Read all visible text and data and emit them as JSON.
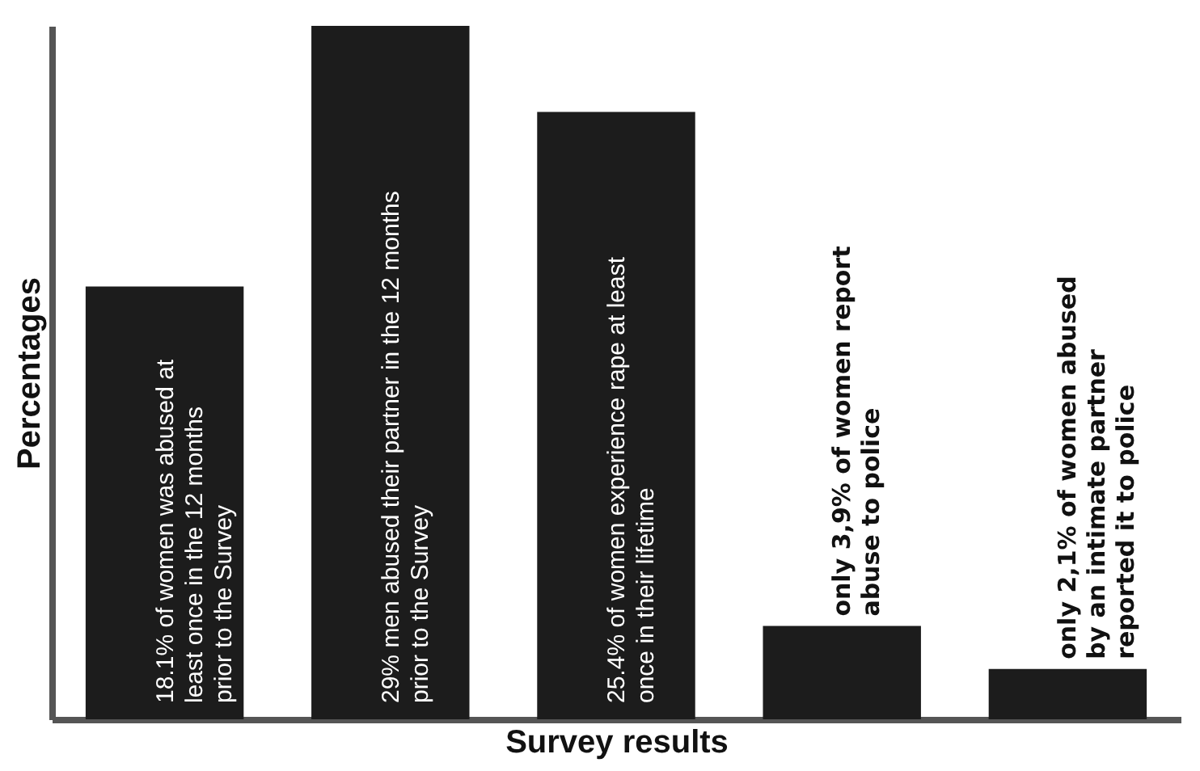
{
  "chart_data": {
    "type": "bar",
    "xlabel": "Survey results",
    "ylabel": "Percentages",
    "categories": [
      null,
      null,
      null,
      null,
      null
    ],
    "values": [
      18.1,
      29,
      25.4,
      3.9,
      2.1
    ],
    "color": "#1c1c1c",
    "value_labels": [
      "18.1% of women was abused at least once in the 12 months prior to the Survey",
      "29% men abused their partner in the 12 months prior to the Survey",
      "25.4% of women experience rape at least once in their lifetime",
      "only 3,9% of women report abuse to police",
      "only 2,1% of women abused by an intimate partner reported it to police"
    ],
    "grid": false
  }
}
